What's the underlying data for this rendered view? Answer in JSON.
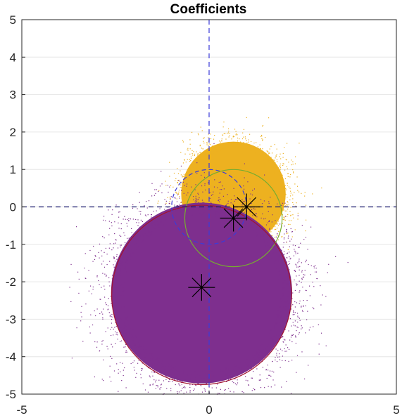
{
  "chart_data": {
    "type": "scatter",
    "title": "Coefficients",
    "xlabel": "",
    "ylabel": "",
    "xlim": [
      -5,
      5
    ],
    "ylim": [
      -5,
      5
    ],
    "xticks": [
      "-5",
      "0",
      "5"
    ],
    "yticks": [
      "5",
      "4",
      "3",
      "2",
      "1",
      "0",
      "-1",
      "-2",
      "-3",
      "-4",
      "-5"
    ],
    "grid": "horizontal",
    "legend": "none",
    "reference_lines": [
      {
        "orientation": "vertical",
        "value": 0,
        "color": "#3b3bd9",
        "style": "dashed"
      },
      {
        "orientation": "horizontal",
        "value": 0,
        "color": "#1a1a6e",
        "style": "dashed"
      }
    ],
    "series": [
      {
        "color": "#edb120",
        "center": [
          0.65,
          0.35
        ],
        "radius_approx": 1.5
      },
      {
        "color": "#7e2f8e",
        "center": [
          -0.2,
          -2.3
        ],
        "radius_approx": 2.6
      }
    ],
    "circles": [
      {
        "center": [
          0.65,
          -0.3
        ],
        "radius": 1.3,
        "color": "#77ac30"
      },
      {
        "center": [
          -0.2,
          -2.35
        ],
        "radius": 2.4,
        "color": "#a2142f"
      },
      {
        "center": [
          0.0,
          0.0
        ],
        "radius": 1.0,
        "color": "#3b3bd9",
        "style": "dashed"
      }
    ],
    "markers": [
      {
        "x": 1.0,
        "y": 0.0,
        "symbol": "asterisk"
      },
      {
        "x": 0.65,
        "y": -0.3,
        "symbol": "asterisk"
      },
      {
        "x": -0.2,
        "y": -2.15,
        "symbol": "asterisk"
      }
    ]
  }
}
